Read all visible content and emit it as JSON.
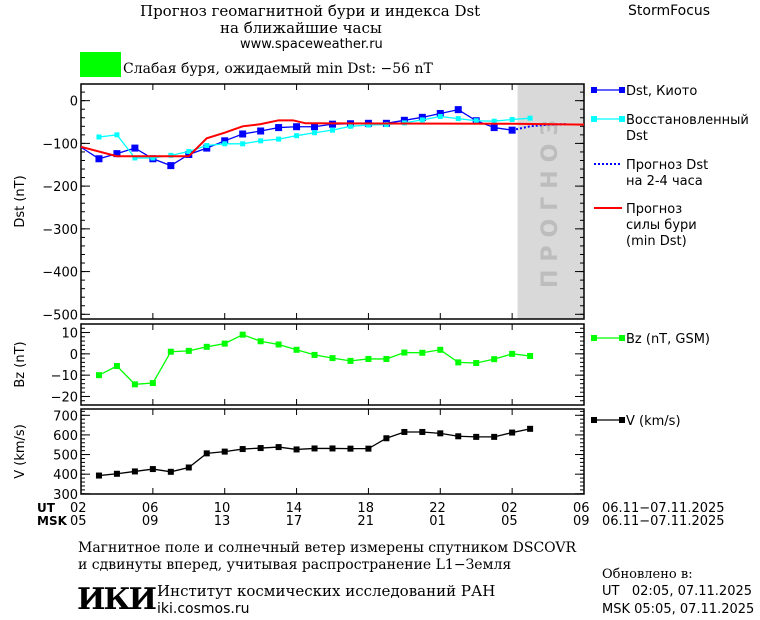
{
  "header": {
    "title_line1": "Прогноз геомагнитной бури и индекса Dst",
    "title_line2": "на ближайшие часы",
    "website": "www.spaceweather.ru",
    "brand": "StormFocus",
    "storm_status": "Слабая буря, ожидаемый min Dst: −56 nT",
    "storm_color": "#00ff00"
  },
  "forecast_band_label": "ПРОГНОЗ",
  "time_axis": {
    "ut_label": "UT",
    "msk_label": "MSK",
    "ut_ticks": [
      "02",
      "06",
      "10",
      "14",
      "18",
      "22",
      "02",
      "06"
    ],
    "msk_ticks": [
      "05",
      "09",
      "13",
      "17",
      "21",
      "01",
      "05",
      "09"
    ],
    "ut_range": "06.11−07.11.2025",
    "msk_range": "06.11−07.11.2025"
  },
  "footer": {
    "note_line1": "Магнитное поле и солнечный ветер измерены спутником DSCOVR",
    "note_line2": "и сдвинуты вперед, учитывая распространение L1−Земля",
    "logo_text": "ИКИ",
    "institute": "Институт космических исследований РАН",
    "institute_site": "iki.cosmos.ru",
    "updated_label": "Обновлено в:",
    "updated_ut": "UT   02:05, 07.11.2025",
    "updated_msk": "MSK 05:05, 07.11.2025"
  },
  "chart_data": [
    {
      "type": "line",
      "ylabel": "Dst (nT)",
      "ylim": [
        -511,
        39
      ],
      "yticks": [
        0,
        -100,
        -200,
        -300,
        -400,
        -500
      ],
      "xlim_hours_from_02UT": [
        0,
        28
      ],
      "forecast_region_hours": [
        24.3,
        28
      ],
      "series": [
        {
          "name": "Dst, Киото",
          "color": "#0000ff",
          "marker": "square",
          "x": [
            0,
            1,
            2,
            3,
            4,
            5,
            6,
            7,
            8,
            9,
            10,
            11,
            12,
            13,
            14,
            15,
            16,
            17,
            18,
            19,
            20,
            21,
            22,
            23,
            24
          ],
          "values": [
            -109,
            -136,
            -124,
            -111,
            -136,
            -152,
            -126,
            -111,
            -94,
            -78,
            -71,
            -63,
            -61,
            -61,
            -55,
            -54,
            -53,
            -53,
            -46,
            -39,
            -30,
            -21,
            -47,
            -63,
            -69
          ]
        },
        {
          "name": "Восстановленный Dst",
          "color": "#00ffff",
          "marker": "square",
          "x": [
            1,
            2,
            3,
            4,
            5,
            6,
            7,
            8,
            9,
            10,
            11,
            12,
            13,
            14,
            15,
            16,
            17,
            18,
            19,
            20,
            21,
            22,
            23,
            24,
            25
          ],
          "values": [
            -85,
            -80,
            -134,
            -134,
            -128,
            -119,
            -105,
            -101,
            -101,
            -94,
            -90,
            -82,
            -75,
            -69,
            -60,
            -57,
            -56,
            -52,
            -45,
            -37,
            -42,
            -47,
            -48,
            -44,
            -41
          ]
        },
        {
          "name": "Прогноз Dst на 2-4 часа",
          "color": "#0000ff",
          "style": "dotted",
          "x": [
            24,
            25,
            26,
            27
          ],
          "values": [
            -69,
            -60,
            -56,
            -55
          ]
        },
        {
          "name": "Прогноз силы бури (min Dst)",
          "color": "#ff0000",
          "x": [
            0,
            2,
            6,
            7,
            8,
            9,
            10,
            11,
            11.8,
            12.5,
            24,
            28
          ],
          "values": [
            -108,
            -130,
            -130,
            -88,
            -75,
            -60,
            -55,
            -46,
            -46,
            -53,
            -54,
            -56
          ]
        }
      ],
      "legend": [
        "Dst, Киото",
        "Восстановленный",
        "Dst",
        "Прогноз Dst",
        "на 2-4 часа",
        "Прогноз",
        "силы бури",
        "(min Dst)"
      ]
    },
    {
      "type": "line",
      "ylabel": "Bz (nT)",
      "ylim": [
        -24,
        14
      ],
      "yticks": [
        10,
        0,
        -10,
        -20
      ],
      "series": [
        {
          "name": "Bz (nT, GSM)",
          "color": "#00ff00",
          "marker": "square",
          "x": [
            1,
            2,
            3,
            4,
            5,
            6,
            7,
            8,
            9,
            10,
            11,
            12,
            13,
            14,
            15,
            16,
            17,
            18,
            19,
            20,
            21,
            22,
            23,
            24,
            25
          ],
          "values": [
            -10,
            -5.7,
            -14.3,
            -13.7,
            1,
            1.4,
            3.3,
            4.8,
            9,
            5.9,
            4.4,
            1.9,
            -0.5,
            -2,
            -3.3,
            -2.4,
            -2.4,
            0.6,
            0.5,
            1.9,
            -4,
            -4.3,
            -2.5,
            0,
            -1
          ]
        }
      ]
    },
    {
      "type": "line",
      "ylabel": "V (km/s)",
      "ylim": [
        299,
        732
      ],
      "yticks": [
        700,
        600,
        500,
        400,
        300
      ],
      "series": [
        {
          "name": "V (km/s)",
          "color": "#000000",
          "marker": "square",
          "x": [
            1,
            2,
            3,
            4,
            5,
            6,
            7,
            8,
            9,
            10,
            11,
            12,
            13,
            14,
            15,
            16,
            17,
            18,
            19,
            20,
            21,
            22,
            23,
            24,
            25
          ],
          "values": [
            393,
            402,
            414,
            426,
            412,
            434,
            506,
            515,
            528,
            533,
            538,
            526,
            531,
            531,
            530,
            530,
            583,
            615,
            615,
            608,
            593,
            590,
            590,
            612,
            631
          ]
        }
      ]
    }
  ]
}
